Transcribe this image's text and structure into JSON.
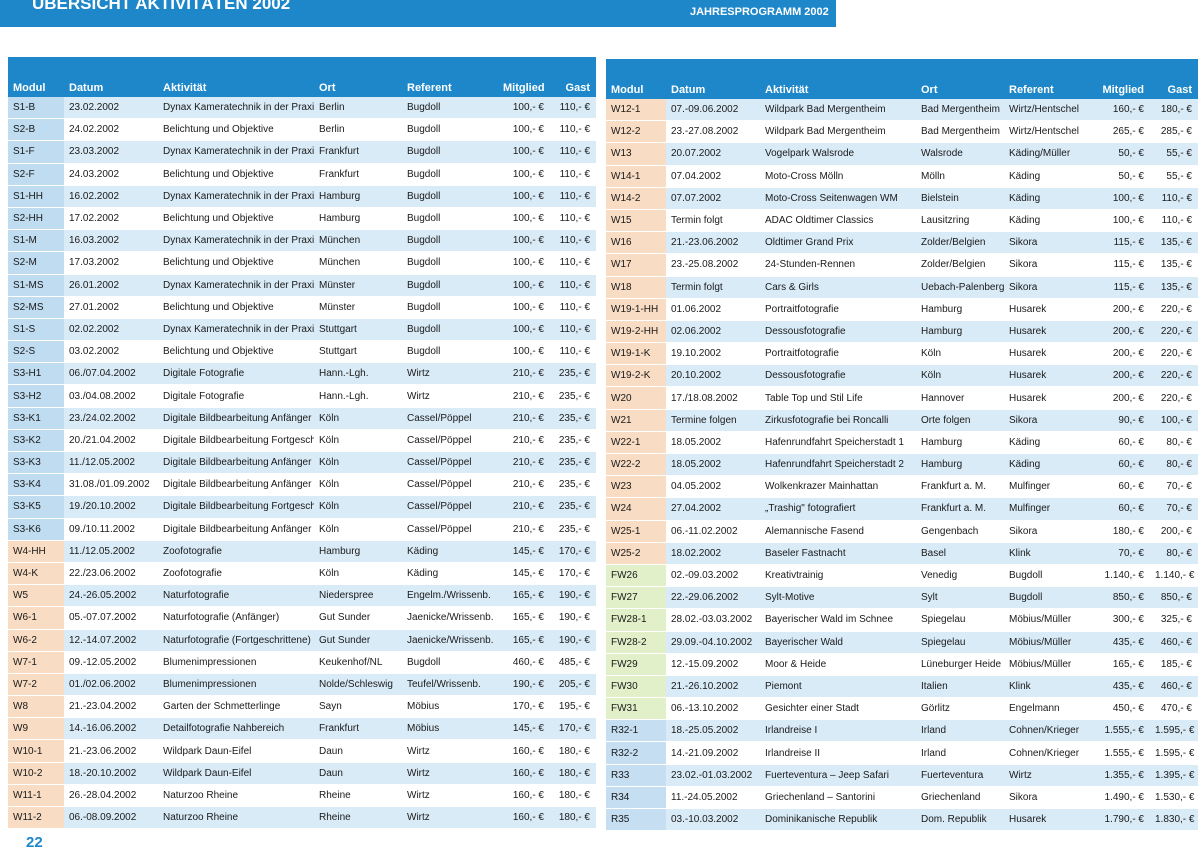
{
  "header": {
    "title": "ÜBERSICHT AKTIVITÄTEN 2002",
    "subtitle": "JAHRESPROGRAMM 2002"
  },
  "page_number": "22",
  "left_table": {
    "columns": [
      "Modul",
      "Datum",
      "Aktivität",
      "Ort",
      "Referent",
      "Mitglied",
      "Gast"
    ],
    "rows": [
      [
        "S1-B",
        "23.02.2002",
        "Dynax Kameratechnik in der Praxis",
        "Berlin",
        "Bugdoll",
        "100,- €",
        "110,- €"
      ],
      [
        "S2-B",
        "24.02.2002",
        "Belichtung und Objektive",
        "Berlin",
        "Bugdoll",
        "100,- €",
        "110,- €"
      ],
      [
        "S1-F",
        "23.03.2002",
        "Dynax Kameratechnik in der Praxis",
        "Frankfurt",
        "Bugdoll",
        "100,- €",
        "110,- €"
      ],
      [
        "S2-F",
        "24.03.2002",
        "Belichtung und Objektive",
        "Frankfurt",
        "Bugdoll",
        "100,- €",
        "110,- €"
      ],
      [
        "S1-HH",
        "16.02.2002",
        "Dynax Kameratechnik in der Praxis",
        "Hamburg",
        "Bugdoll",
        "100,- €",
        "110,- €"
      ],
      [
        "S2-HH",
        "17.02.2002",
        "Belichtung und Objektive",
        "Hamburg",
        "Bugdoll",
        "100,- €",
        "110,- €"
      ],
      [
        "S1-M",
        "16.03.2002",
        "Dynax Kameratechnik in der Praxis",
        "München",
        "Bugdoll",
        "100,- €",
        "110,- €"
      ],
      [
        "S2-M",
        "17.03.2002",
        "Belichtung und Objektive",
        "München",
        "Bugdoll",
        "100,- €",
        "110,- €"
      ],
      [
        "S1-MS",
        "26.01.2002",
        "Dynax Kameratechnik in der Praxis",
        "Münster",
        "Bugdoll",
        "100,- €",
        "110,- €"
      ],
      [
        "S2-MS",
        "27.01.2002",
        "Belichtung und Objektive",
        "Münster",
        "Bugdoll",
        "100,- €",
        "110,- €"
      ],
      [
        "S1-S",
        "02.02.2002",
        "Dynax Kameratechnik in der Praxis",
        "Stuttgart",
        "Bugdoll",
        "100,- €",
        "110,- €"
      ],
      [
        "S2-S",
        "03.02.2002",
        "Belichtung und Objektive",
        "Stuttgart",
        "Bugdoll",
        "100,- €",
        "110,- €"
      ],
      [
        "S3-H1",
        "06./07.04.2002",
        "Digitale Fotografie",
        "Hann.-Lgh.",
        "Wirtz",
        "210,- €",
        "235,- €"
      ],
      [
        "S3-H2",
        "03./04.08.2002",
        "Digitale Fotografie",
        "Hann.-Lgh.",
        "Wirtz",
        "210,- €",
        "235,- €"
      ],
      [
        "S3-K1",
        "23./24.02.2002",
        "Digitale Bildbearbeitung Anfänger",
        "Köln",
        "Cassel/Pöppel",
        "210,- €",
        "235,- €"
      ],
      [
        "S3-K2",
        "20./21.04.2002",
        "Digitale Bildbearbeitung Fortgeschr.",
        "Köln",
        "Cassel/Pöppel",
        "210,- €",
        "235,- €"
      ],
      [
        "S3-K3",
        "11./12.05.2002",
        "Digitale Bildbearbeitung Anfänger",
        "Köln",
        "Cassel/Pöppel",
        "210,- €",
        "235,- €"
      ],
      [
        "S3-K4",
        "31.08./01.09.2002",
        "Digitale Bildbearbeitung Anfänger",
        "Köln",
        "Cassel/Pöppel",
        "210,- €",
        "235,- €"
      ],
      [
        "S3-K5",
        "19./20.10.2002",
        "Digitale Bildbearbeitung Fortgeschr.",
        "Köln",
        "Cassel/Pöppel",
        "210,- €",
        "235,- €"
      ],
      [
        "S3-K6",
        "09./10.11.2002",
        "Digitale Bildbearbeitung Anfänger",
        "Köln",
        "Cassel/Pöppel",
        "210,- €",
        "235,- €"
      ],
      [
        "W4-HH",
        "11./12.05.2002",
        "Zoofotografie",
        "Hamburg",
        "Käding",
        "145,- €",
        "170,- €"
      ],
      [
        "W4-K",
        "22./23.06.2002",
        "Zoofotografie",
        "Köln",
        "Käding",
        "145,- €",
        "170,- €"
      ],
      [
        "W5",
        "24.-26.05.2002",
        "Naturfotografie",
        "Niederspree",
        "Engelm./Wrissenb.",
        "165,- €",
        "190,- €"
      ],
      [
        "W6-1",
        "05.-07.07.2002",
        "Naturfotografie (Anfänger)",
        "Gut Sunder",
        "Jaenicke/Wrissenb.",
        "165,- €",
        "190,- €"
      ],
      [
        "W6-2",
        "12.-14.07.2002",
        "Naturfotografie (Fortgeschrittene)",
        "Gut Sunder",
        "Jaenicke/Wrissenb.",
        "165,- €",
        "190,- €"
      ],
      [
        "W7-1",
        "09.-12.05.2002",
        "Blumenimpressionen",
        "Keukenhof/NL",
        "Bugdoll",
        "460,- €",
        "485,- €"
      ],
      [
        "W7-2",
        "01./02.06.2002",
        "Blumenimpressionen",
        "Nolde/Schleswig",
        "Teufel/Wrissenb.",
        "190,- €",
        "205,- €"
      ],
      [
        "W8",
        "21.-23.04.2002",
        "Garten der Schmetterlinge",
        "Sayn",
        "Möbius",
        "170,- €",
        "195,- €"
      ],
      [
        "W9",
        "14.-16.06.2002",
        "Detailfotografie Nahbereich",
        "Frankfurt",
        "Möbius",
        "145,- €",
        "170,- €"
      ],
      [
        "W10-1",
        "21.-23.06.2002",
        "Wildpark Daun-Eifel",
        "Daun",
        "Wirtz",
        "160,- €",
        "180,- €"
      ],
      [
        "W10-2",
        "18.-20.10.2002",
        "Wildpark Daun-Eifel",
        "Daun",
        "Wirtz",
        "160,- €",
        "180,- €"
      ],
      [
        "W11-1",
        "26.-28.04.2002",
        "Naturzoo Rheine",
        "Rheine",
        "Wirtz",
        "160,- €",
        "180,- €"
      ],
      [
        "W11-2",
        "06.-08.09.2002",
        "Naturzoo Rheine",
        "Rheine",
        "Wirtz",
        "160,- €",
        "180,- €"
      ]
    ]
  },
  "right_table": {
    "columns": [
      "Modul",
      "Datum",
      "Aktivität",
      "Ort",
      "Referent",
      "Mitglied",
      "Gast"
    ],
    "rows": [
      [
        "W12-1",
        "07.-09.06.2002",
        "Wildpark Bad Mergentheim",
        "Bad Mergentheim",
        "Wirtz/Hentschel",
        "160,- €",
        "180,- €"
      ],
      [
        "W12-2",
        "23.-27.08.2002",
        "Wildpark Bad Mergentheim",
        "Bad Mergentheim",
        "Wirtz/Hentschel",
        "265,- €",
        "285,- €"
      ],
      [
        "W13",
        "20.07.2002",
        "Vogelpark Walsrode",
        "Walsrode",
        "Käding/Müller",
        "50,- €",
        "55,- €"
      ],
      [
        "W14-1",
        "07.04.2002",
        "Moto-Cross Mölln",
        "Mölln",
        "Käding",
        "50,- €",
        "55,- €"
      ],
      [
        "W14-2",
        "07.07.2002",
        "Moto-Cross Seitenwagen WM",
        "Bielstein",
        "Käding",
        "100,- €",
        "110,- €"
      ],
      [
        "W15",
        "Termin folgt",
        "ADAC Oldtimer Classics",
        "Lausitzring",
        "Käding",
        "100,- €",
        "110,- €"
      ],
      [
        "W16",
        "21.-23.06.2002",
        "Oldtimer Grand Prix",
        "Zolder/Belgien",
        "Sikora",
        "115,- €",
        "135,- €"
      ],
      [
        "W17",
        "23.-25.08.2002",
        "24-Stunden-Rennen",
        "Zolder/Belgien",
        "Sikora",
        "115,- €",
        "135,- €"
      ],
      [
        "W18",
        "Termin folgt",
        "Cars & Girls",
        "Uebach-Palenberg",
        "Sikora",
        "115,- €",
        "135,- €"
      ],
      [
        "W19-1-HH",
        "01.06.2002",
        "Portraitfotografie",
        "Hamburg",
        "Husarek",
        "200,- €",
        "220,- €"
      ],
      [
        "W19-2-HH",
        "02.06.2002",
        "Dessousfotografie",
        "Hamburg",
        "Husarek",
        "200,- €",
        "220,- €"
      ],
      [
        "W19-1-K",
        "19.10.2002",
        "Portraitfotografie",
        "Köln",
        "Husarek",
        "200,- €",
        "220,- €"
      ],
      [
        "W19-2-K",
        "20.10.2002",
        "Dessousfotografie",
        "Köln",
        "Husarek",
        "200,- €",
        "220,- €"
      ],
      [
        "W20",
        "17./18.08.2002",
        "Table Top und Stil Life",
        "Hannover",
        "Husarek",
        "200,- €",
        "220,- €"
      ],
      [
        "W21",
        "Termine folgen",
        "Zirkusfotografie bei Roncalli",
        "Orte folgen",
        "Sikora",
        "90,- €",
        "100,- €"
      ],
      [
        "W22-1",
        "18.05.2002",
        "Hafenrundfahrt Speicherstadt 1",
        "Hamburg",
        "Käding",
        "60,- €",
        "80,- €"
      ],
      [
        "W22-2",
        "18.05.2002",
        "Hafenrundfahrt Speicherstadt 2",
        "Hamburg",
        "Käding",
        "60,- €",
        "80,- €"
      ],
      [
        "W23",
        "04.05.2002",
        "Wolkenkrazer Mainhattan",
        "Frankfurt a. M.",
        "Mulfinger",
        "60,- €",
        "70,- €"
      ],
      [
        "W24",
        "27.04.2002",
        "„Trashig\" fotografiert",
        "Frankfurt a. M.",
        "Mulfinger",
        "60,- €",
        "70,- €"
      ],
      [
        "W25-1",
        "06.-11.02.2002",
        "Alemannische Fasend",
        "Gengenbach",
        "Sikora",
        "180,- €",
        "200,- €"
      ],
      [
        "W25-2",
        "18.02.2002",
        "Baseler Fastnacht",
        "Basel",
        "Klink",
        "70,- €",
        "80,- €"
      ],
      [
        "FW26",
        "02.-09.03.2002",
        "Kreativtrainig",
        "Venedig",
        "Bugdoll",
        "1.140,- €",
        "1.140,- €"
      ],
      [
        "FW27",
        "22.-29.06.2002",
        "Sylt-Motive",
        "Sylt",
        "Bugdoll",
        "850,- €",
        "850,- €"
      ],
      [
        "FW28-1",
        "28.02.-03.03.2002",
        "Bayerischer Wald im Schnee",
        "Spiegelau",
        "Möbius/Müller",
        "300,- €",
        "325,- €"
      ],
      [
        "FW28-2",
        "29.09.-04.10.2002",
        "Bayerischer Wald",
        "Spiegelau",
        "Möbius/Müller",
        "435,- €",
        "460,- €"
      ],
      [
        "FW29",
        "12.-15.09.2002",
        "Moor & Heide",
        "Lüneburger Heide",
        "Möbius/Müller",
        "165,- €",
        "185,- €"
      ],
      [
        "FW30",
        "21.-26.10.2002",
        "Piemont",
        "Italien",
        "Klink",
        "435,- €",
        "460,- €"
      ],
      [
        "FW31",
        "06.-13.10.2002",
        "Gesichter einer Stadt",
        "Görlitz",
        "Engelmann",
        "450,- €",
        "470,- €"
      ],
      [
        "R32-1",
        "18.-25.05.2002",
        "Irlandreise I",
        "Irland",
        "Cohnen/Krieger",
        "1.555,- €",
        "1.595,- €"
      ],
      [
        "R32-2",
        "14.-21.09.2002",
        "Irlandreise II",
        "Irland",
        "Cohnen/Krieger",
        "1.555,- €",
        "1.595,- €"
      ],
      [
        "R33",
        "23.02.-01.03.2002",
        "Fuerteventura – Jeep Safari",
        "Fuerteventura",
        "Wirtz",
        "1.355,- €",
        "1.395,- €"
      ],
      [
        "R34",
        "11.-24.05.2002",
        "Griechenland – Santorini",
        "Griechenland",
        "Sikora",
        "1.490,- €",
        "1.530,- €"
      ],
      [
        "R35",
        "03.-10.03.2002",
        "Dominikanische Republik",
        "Dom. Republik",
        "Husarek",
        "1.790,- €",
        "1.830,- €"
      ]
    ]
  }
}
